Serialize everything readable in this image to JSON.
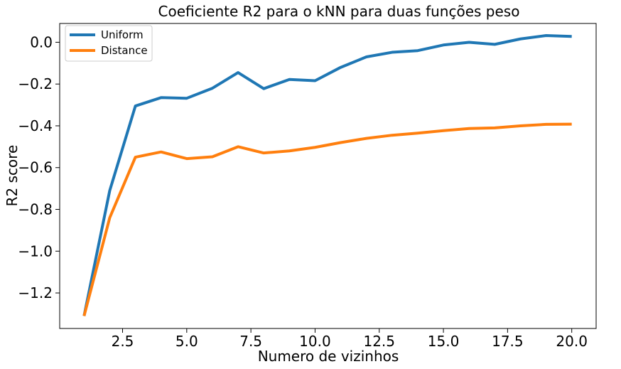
{
  "chart_data": {
    "type": "line",
    "title": "Coeficiente R2 para o kNN para duas funções peso",
    "xlabel": "Numero de vizinhos",
    "ylabel": "R2 score",
    "xlim": [
      0.05,
      20.95
    ],
    "ylim": [
      -1.37,
      0.09
    ],
    "xticks": [
      2.5,
      5.0,
      7.5,
      10.0,
      12.5,
      15.0,
      17.5,
      20.0
    ],
    "xtick_labels": [
      "2.5",
      "5.0",
      "7.5",
      "10.0",
      "12.5",
      "15.0",
      "17.5",
      "20.0"
    ],
    "yticks": [
      -1.2,
      -1.0,
      -0.8,
      -0.6,
      -0.4,
      -0.2,
      0.0
    ],
    "ytick_labels": [
      "−1.2",
      "−1.0",
      "−0.8",
      "−0.6",
      "−0.4",
      "−0.2",
      "0.0"
    ],
    "grid": false,
    "legend_position": "upper-left",
    "x": [
      1,
      2,
      3,
      4,
      5,
      6,
      7,
      8,
      9,
      10,
      11,
      12,
      13,
      14,
      15,
      16,
      17,
      18,
      19,
      20
    ],
    "series": [
      {
        "name": "Uniform",
        "color": "#1f77b4",
        "values": [
          -1.31,
          -0.71,
          -0.305,
          -0.265,
          -0.268,
          -0.22,
          -0.145,
          -0.222,
          -0.178,
          -0.184,
          -0.12,
          -0.07,
          -0.048,
          -0.04,
          -0.013,
          0.0,
          -0.01,
          0.016,
          0.032,
          0.028
        ]
      },
      {
        "name": "Distance",
        "color": "#ff7f0e",
        "values": [
          -1.31,
          -0.84,
          -0.55,
          -0.525,
          -0.557,
          -0.548,
          -0.5,
          -0.53,
          -0.52,
          -0.503,
          -0.48,
          -0.46,
          -0.445,
          -0.435,
          -0.423,
          -0.413,
          -0.41,
          -0.4,
          -0.393,
          -0.392
        ]
      }
    ]
  }
}
